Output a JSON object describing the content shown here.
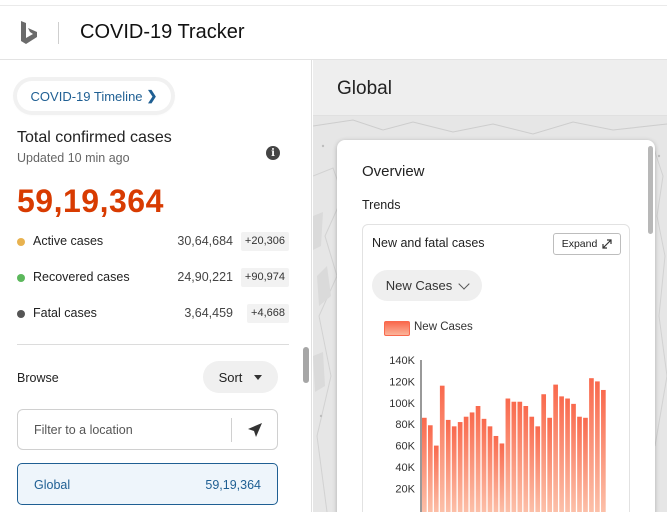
{
  "header": {
    "logo_icon": "bing-logo-icon",
    "title": "COVID-19 Tracker"
  },
  "left": {
    "timeline_button": "COVID-19 Timeline",
    "total_title": "Total confirmed cases",
    "updated": "Updated 10 min ago",
    "total_value": "59,19,364",
    "stats": [
      {
        "label": "Active cases",
        "value": "30,64,684",
        "delta": "+20,306",
        "color": "#e8b24f"
      },
      {
        "label": "Recovered cases",
        "value": "24,90,221",
        "delta": "+90,974",
        "color": "#5cb85c"
      },
      {
        "label": "Fatal cases",
        "value": "3,64,459",
        "delta": "+4,668",
        "color": "#555555"
      }
    ],
    "browse_label": "Browse",
    "sort_label": "Sort",
    "filter_placeholder": "Filter to a location",
    "global_row": {
      "name": "Global",
      "value": "59,19,364"
    }
  },
  "right": {
    "region_title": "Global",
    "overview": "Overview",
    "trends": "Trends",
    "chart_card_title": "New and fatal cases",
    "expand_label": "Expand",
    "dropdown_value": "New Cases"
  },
  "chart_data": {
    "type": "bar",
    "title": "",
    "xlabel": "",
    "ylabel": "",
    "ylim": [
      0,
      140000
    ],
    "yticks": [
      "140K",
      "120K",
      "100K",
      "80K",
      "60K",
      "40K",
      "20K"
    ],
    "series": [
      {
        "name": "New Cases",
        "color": "#f9694d",
        "values": [
          86000,
          79000,
          60000,
          116000,
          84000,
          78000,
          82000,
          87000,
          91000,
          97000,
          85000,
          78000,
          69000,
          62000,
          104000,
          101000,
          101000,
          97000,
          87000,
          78000,
          108000,
          86000,
          117000,
          106000,
          104000,
          99000,
          87000,
          86000,
          123000,
          120000,
          112000
        ]
      }
    ]
  }
}
